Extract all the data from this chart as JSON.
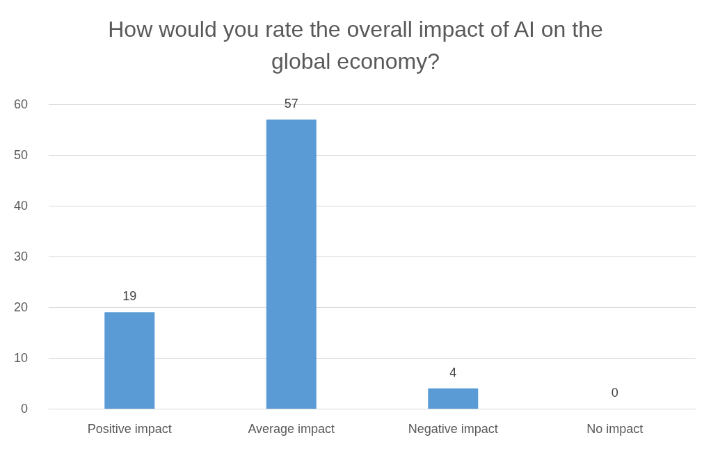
{
  "chart_data": {
    "type": "bar",
    "title": "How would you rate the overall impact of AI on the\nglobal economy?",
    "categories": [
      "Positive impact",
      "Average impact",
      "Negative impact",
      "No impact"
    ],
    "values": [
      19,
      57,
      4,
      0
    ],
    "color": "#5b9bd5",
    "ylim": [
      0,
      60
    ],
    "yticks": [
      0,
      10,
      20,
      30,
      40,
      50,
      60
    ],
    "grid": "y",
    "data_labels": true
  }
}
